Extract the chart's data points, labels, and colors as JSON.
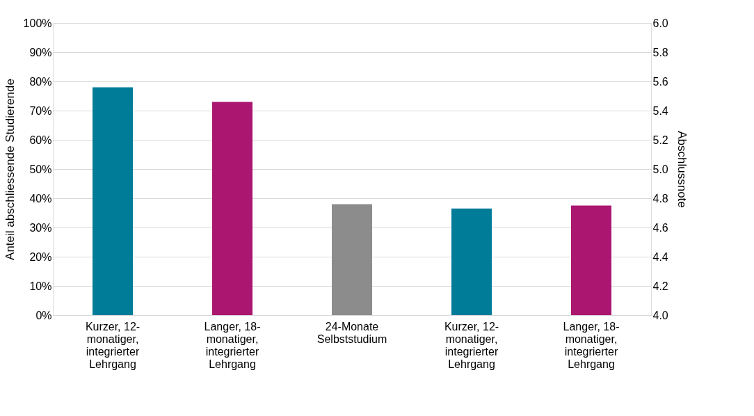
{
  "chart_data": {
    "type": "bar",
    "categories": [
      "Kurzer, 12-\nmonatiger,\nintegrierter\nLehrgang",
      "Langer, 18-\nmonatiger,\nintegrierter\nLehrgang",
      "24-Monate\nSelbststudium",
      "Kurzer, 12-\nmonatiger,\nintegrierter\nLehrgang",
      "Langer, 18-\nmonatiger,\nintegrierter\nLehrgang"
    ],
    "series": [
      {
        "colors": [
          "#007c99",
          "#aa1670",
          "#8c8c8c",
          null,
          null
        ],
        "values": [
          78,
          73,
          38,
          null,
          null
        ]
      },
      {
        "axis": "y2",
        "colors": [
          null,
          null,
          null,
          "#007c99",
          "#aa1670"
        ],
        "values": [
          null,
          null,
          null,
          4.73,
          4.75
        ]
      }
    ],
    "ylabel": "Anteil abschliessende Studierende",
    "y2label": "Abschlussnote",
    "ylim": [
      0,
      100
    ],
    "yticks": [
      {
        "value": 0,
        "label": "0%"
      },
      {
        "value": 10,
        "label": "10%"
      },
      {
        "value": 20,
        "label": "20%"
      },
      {
        "value": 30,
        "label": "30%"
      },
      {
        "value": 40,
        "label": "40%"
      },
      {
        "value": 50,
        "label": "50%"
      },
      {
        "value": 60,
        "label": "60%"
      },
      {
        "value": 70,
        "label": "70%"
      },
      {
        "value": 80,
        "label": "80%"
      },
      {
        "value": 90,
        "label": "90%"
      },
      {
        "value": 100,
        "label": "100%"
      }
    ],
    "y2lim": [
      4.0,
      6.0
    ],
    "y2ticks": [
      {
        "value": 4.0,
        "label": "4.0"
      },
      {
        "value": 4.2,
        "label": "4.2"
      },
      {
        "value": 4.4,
        "label": "4.4"
      },
      {
        "value": 4.6,
        "label": "4.6"
      },
      {
        "value": 4.8,
        "label": "4.8"
      },
      {
        "value": 5.0,
        "label": "5.0"
      },
      {
        "value": 5.2,
        "label": "5.2"
      },
      {
        "value": 5.4,
        "label": "5.4"
      },
      {
        "value": 5.6,
        "label": "5.6"
      },
      {
        "value": 5.8,
        "label": "5.8"
      },
      {
        "value": 6.0,
        "label": "6.0"
      }
    ],
    "grid": "y"
  }
}
